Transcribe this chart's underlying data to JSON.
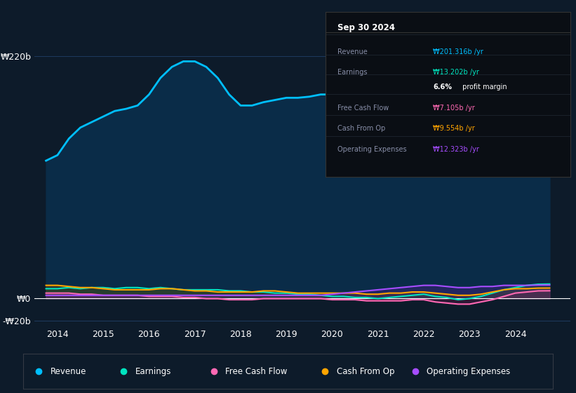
{
  "background_color": "#0d1b2a",
  "plot_bg_color": "#0d1b2a",
  "title": "Sep 30 2024",
  "xlim_start": 2013.5,
  "xlim_end": 2025.2,
  "ylim_min": -25,
  "ylim_max": 235,
  "xtick_labels": [
    "2014",
    "2015",
    "2016",
    "2017",
    "2018",
    "2019",
    "2020",
    "2021",
    "2022",
    "2023",
    "2024"
  ],
  "xtick_positions": [
    2014,
    2015,
    2016,
    2017,
    2018,
    2019,
    2020,
    2021,
    2022,
    2023,
    2024
  ],
  "legend_items": [
    {
      "label": "Revenue",
      "color": "#00bfff"
    },
    {
      "label": "Earnings",
      "color": "#00e5c0"
    },
    {
      "label": "Free Cash Flow",
      "color": "#ff69b4"
    },
    {
      "label": "Cash From Op",
      "color": "#ffa500"
    },
    {
      "label": "Operating Expenses",
      "color": "#a64dff"
    }
  ],
  "tooltip": {
    "date": "Sep 30 2024",
    "revenue": "₩201.316b",
    "revenue_color": "#00bfff",
    "earnings": "₩13.202b",
    "earnings_color": "#00e5c0",
    "profit_margin": "6.6%",
    "free_cash_flow": "₩7.105b",
    "free_cash_flow_color": "#ff69b4",
    "cash_from_op": "₩9.554b",
    "cash_from_op_color": "#ffa500",
    "operating_expenses": "₩12.323b",
    "operating_expenses_color": "#a64dff"
  },
  "revenue": {
    "x": [
      2013.75,
      2014.0,
      2014.25,
      2014.5,
      2014.75,
      2015.0,
      2015.25,
      2015.5,
      2015.75,
      2016.0,
      2016.25,
      2016.5,
      2016.75,
      2017.0,
      2017.25,
      2017.5,
      2017.75,
      2018.0,
      2018.25,
      2018.5,
      2018.75,
      2019.0,
      2019.25,
      2019.5,
      2019.75,
      2020.0,
      2020.25,
      2020.5,
      2020.75,
      2021.0,
      2021.25,
      2021.5,
      2021.75,
      2022.0,
      2022.25,
      2022.5,
      2022.75,
      2023.0,
      2023.25,
      2023.5,
      2023.75,
      2024.0,
      2024.25,
      2024.5,
      2024.75
    ],
    "y": [
      125,
      130,
      145,
      155,
      160,
      165,
      170,
      172,
      175,
      185,
      200,
      210,
      215,
      215,
      210,
      200,
      185,
      175,
      175,
      178,
      180,
      182,
      182,
      183,
      185,
      185,
      178,
      175,
      168,
      165,
      168,
      172,
      175,
      170,
      162,
      155,
      152,
      155,
      165,
      185,
      200,
      210,
      215,
      210,
      201
    ],
    "color": "#00bfff",
    "fill_color": "#0a2d4a",
    "linewidth": 2.0
  },
  "earnings": {
    "x": [
      2013.75,
      2014.0,
      2014.25,
      2014.5,
      2014.75,
      2015.0,
      2015.25,
      2015.5,
      2015.75,
      2016.0,
      2016.25,
      2016.5,
      2016.75,
      2017.0,
      2017.25,
      2017.5,
      2017.75,
      2018.0,
      2018.25,
      2018.5,
      2018.75,
      2019.0,
      2019.25,
      2019.5,
      2019.75,
      2020.0,
      2020.25,
      2020.5,
      2020.75,
      2021.0,
      2021.25,
      2021.5,
      2021.75,
      2022.0,
      2022.25,
      2022.5,
      2022.75,
      2023.0,
      2023.25,
      2023.5,
      2023.75,
      2024.0,
      2024.25,
      2024.5,
      2024.75
    ],
    "y": [
      9,
      9,
      10,
      9,
      10,
      10,
      9,
      10,
      10,
      9,
      10,
      9,
      8,
      8,
      8,
      8,
      7,
      7,
      6,
      6,
      5,
      5,
      4,
      4,
      3,
      2,
      2,
      1,
      1,
      0,
      1,
      2,
      3,
      4,
      2,
      1,
      -1,
      0,
      2,
      5,
      8,
      10,
      12,
      13,
      13.2
    ],
    "color": "#00e5c0",
    "fill_color": "#004d40",
    "linewidth": 1.5
  },
  "free_cash_flow": {
    "x": [
      2013.75,
      2014.0,
      2014.25,
      2014.5,
      2014.75,
      2015.0,
      2015.25,
      2015.5,
      2015.75,
      2016.0,
      2016.25,
      2016.5,
      2016.75,
      2017.0,
      2017.25,
      2017.5,
      2017.75,
      2018.0,
      2018.25,
      2018.5,
      2018.75,
      2019.0,
      2019.25,
      2019.5,
      2019.75,
      2020.0,
      2020.25,
      2020.5,
      2020.75,
      2021.0,
      2021.25,
      2021.5,
      2021.75,
      2022.0,
      2022.25,
      2022.5,
      2022.75,
      2023.0,
      2023.25,
      2023.5,
      2023.75,
      2024.0,
      2024.25,
      2024.5,
      2024.75
    ],
    "y": [
      5,
      5,
      5,
      4,
      4,
      3,
      3,
      3,
      3,
      2,
      2,
      2,
      1,
      1,
      0,
      0,
      -1,
      -1,
      -1,
      0,
      0,
      0,
      0,
      0,
      0,
      -1,
      -1,
      -1,
      -2,
      -2,
      -2,
      -2,
      -1,
      -1,
      -3,
      -4,
      -5,
      -5,
      -3,
      -1,
      2,
      5,
      6,
      7,
      7.1
    ],
    "color": "#ff69b4",
    "fill_color": "#7b1550",
    "linewidth": 1.5
  },
  "cash_from_op": {
    "x": [
      2013.75,
      2014.0,
      2014.25,
      2014.5,
      2014.75,
      2015.0,
      2015.25,
      2015.5,
      2015.75,
      2016.0,
      2016.25,
      2016.5,
      2016.75,
      2017.0,
      2017.25,
      2017.5,
      2017.75,
      2018.0,
      2018.25,
      2018.5,
      2018.75,
      2019.0,
      2019.25,
      2019.5,
      2019.75,
      2020.0,
      2020.25,
      2020.5,
      2020.75,
      2021.0,
      2021.25,
      2021.5,
      2021.75,
      2022.0,
      2022.25,
      2022.5,
      2022.75,
      2023.0,
      2023.25,
      2023.5,
      2023.75,
      2024.0,
      2024.25,
      2024.5,
      2024.75
    ],
    "y": [
      12,
      12,
      11,
      10,
      10,
      9,
      8,
      8,
      8,
      8,
      9,
      9,
      8,
      7,
      7,
      6,
      6,
      6,
      6,
      7,
      7,
      6,
      5,
      5,
      5,
      5,
      5,
      5,
      4,
      4,
      5,
      5,
      6,
      6,
      5,
      4,
      3,
      3,
      4,
      6,
      8,
      9,
      9,
      9.5,
      9.554
    ],
    "color": "#ffa500",
    "fill_color": "#7a4500",
    "linewidth": 1.5
  },
  "operating_expenses": {
    "x": [
      2013.75,
      2014.0,
      2014.25,
      2014.5,
      2014.75,
      2015.0,
      2015.25,
      2015.5,
      2015.75,
      2016.0,
      2016.25,
      2016.5,
      2016.75,
      2017.0,
      2017.25,
      2017.5,
      2017.75,
      2018.0,
      2018.25,
      2018.5,
      2018.75,
      2019.0,
      2019.25,
      2019.5,
      2019.75,
      2020.0,
      2020.25,
      2020.5,
      2020.75,
      2021.0,
      2021.25,
      2021.5,
      2021.75,
      2022.0,
      2022.25,
      2022.5,
      2022.75,
      2023.0,
      2023.25,
      2023.5,
      2023.75,
      2024.0,
      2024.25,
      2024.5,
      2024.75
    ],
    "y": [
      3,
      3,
      3,
      3,
      3,
      3,
      3,
      3,
      3,
      3,
      3,
      3,
      3,
      3,
      3,
      3,
      3,
      3,
      3,
      3,
      3,
      3,
      3,
      3,
      3,
      4,
      5,
      6,
      7,
      8,
      9,
      10,
      11,
      12,
      12,
      11,
      10,
      10,
      11,
      11,
      12,
      12,
      12,
      12.3,
      12.323
    ],
    "color": "#a64dff",
    "fill_color": "#5a1a9a",
    "linewidth": 1.5
  }
}
